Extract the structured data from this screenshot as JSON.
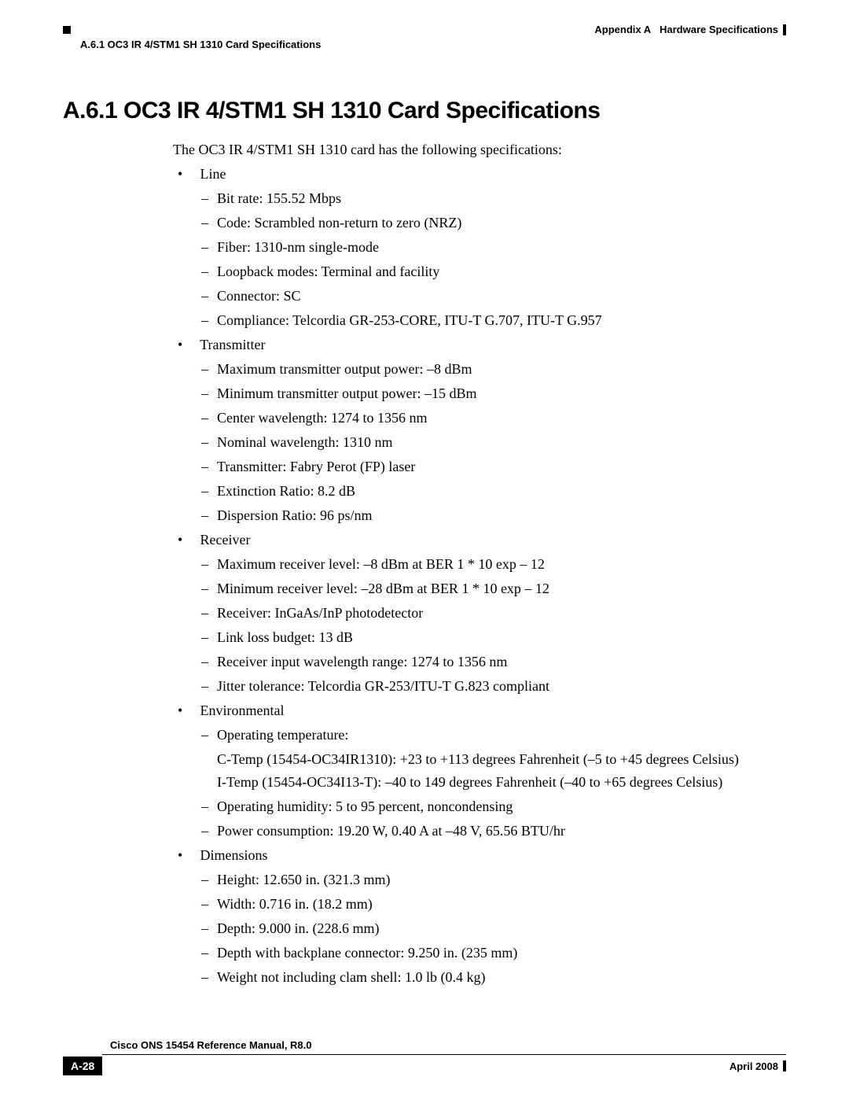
{
  "header": {
    "appendix": "Appendix A",
    "appendix_title": "Hardware Specifications",
    "section_ref": "A.6.1  OC3 IR 4/STM1 SH 1310 Card Specifications"
  },
  "title": "A.6.1  OC3 IR 4/STM1 SH 1310 Card Specifications",
  "intro": "The OC3 IR 4/STM1 SH 1310 card has the following specifications:",
  "specs": [
    {
      "label": "Line",
      "items": [
        "Bit rate: 155.52 Mbps",
        "Code: Scrambled non-return to zero (NRZ)",
        "Fiber: 1310-nm single-mode",
        "Loopback modes: Terminal and facility",
        "Connector: SC",
        "Compliance: Telcordia GR-253-CORE, ITU-T G.707, ITU-T G.957"
      ]
    },
    {
      "label": "Transmitter",
      "items": [
        "Maximum transmitter output power: –8 dBm",
        "Minimum transmitter output power: –15 dBm",
        "Center wavelength: 1274 to 1356 nm",
        "Nominal wavelength: 1310 nm",
        "Transmitter: Fabry Perot (FP) laser",
        "Extinction Ratio: 8.2 dB",
        "Dispersion Ratio: 96 ps/nm"
      ]
    },
    {
      "label": "Receiver",
      "items": [
        "Maximum receiver level: –8 dBm at BER 1 * 10 exp – 12",
        "Minimum receiver level: –28 dBm at BER 1 * 10 exp – 12",
        "Receiver: InGaAs/InP photodetector",
        "Link loss budget: 13 dB",
        "Receiver input wavelength range: 1274 to 1356 nm",
        "Jitter tolerance: Telcordia GR-253/ITU-T G.823 compliant"
      ]
    },
    {
      "label": "Environmental",
      "items": [
        "Operating temperature:",
        "Operating humidity: 5 to 95 percent, noncondensing",
        "Power consumption: 19.20 W, 0.40 A at –48 V, 65.56 BTU/hr"
      ],
      "extra_after_0": [
        "C-Temp (15454-OC34IR1310): +23 to +113 degrees Fahrenheit (–5 to +45 degrees Celsius)",
        "I-Temp (15454-OC34I13-T): –40 to 149 degrees Fahrenheit (–40 to +65 degrees Celsius)"
      ]
    },
    {
      "label": "Dimensions",
      "items": [
        "Height: 12.650 in. (321.3 mm)",
        "Width: 0.716 in. (18.2 mm)",
        "Depth: 9.000 in. (228.6 mm)",
        "Depth with backplane connector: 9.250 in. (235 mm)",
        "Weight not including clam shell: 1.0 lb (0.4 kg)"
      ]
    }
  ],
  "footer": {
    "manual": "Cisco ONS 15454 Reference Manual, R8.0",
    "page": "A-28",
    "date": "April 2008"
  }
}
